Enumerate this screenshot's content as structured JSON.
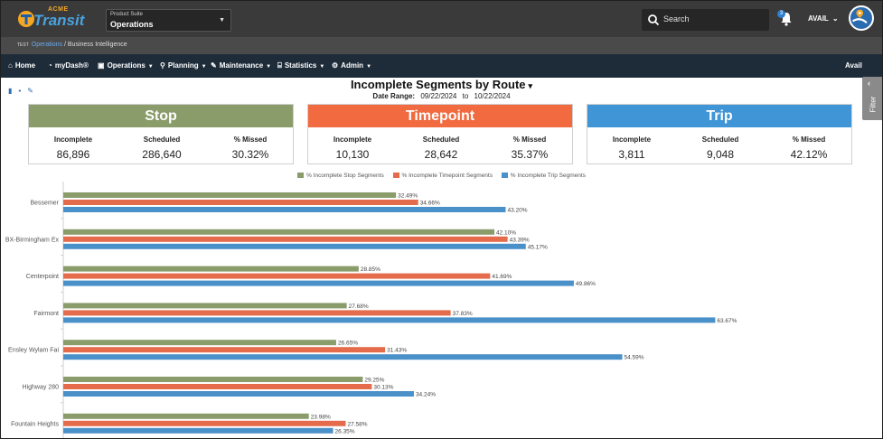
{
  "header": {
    "logo_acme": "ACME",
    "logo_transit": "Transit",
    "suite_label": "Product Suite",
    "suite_value": "Operations",
    "search_placeholder": "Search",
    "notification_count": "3",
    "user_label": "AVAIL"
  },
  "breadcrumb": {
    "env": "TEST",
    "link": "Operations",
    "separator": "/",
    "current": "Business Intelligence"
  },
  "nav": {
    "items": [
      {
        "label": "Home",
        "icon": "home-icon",
        "dropdown": false
      },
      {
        "label": "myDash®",
        "icon": "dashboard-icon",
        "dropdown": false
      },
      {
        "label": "Operations",
        "icon": "bus-icon",
        "dropdown": true
      },
      {
        "label": "Planning",
        "icon": "map-pin-icon",
        "dropdown": true
      },
      {
        "label": "Maintenance",
        "icon": "wrench-icon",
        "dropdown": true
      },
      {
        "label": "Statistics",
        "icon": "bank-icon",
        "dropdown": true
      },
      {
        "label": "Admin",
        "icon": "gears-icon",
        "dropdown": true
      }
    ],
    "right_label": "Avail"
  },
  "report": {
    "title": "Incomplete Segments by Route",
    "date_range_label": "Date Range:",
    "date_from": "09/22/2024",
    "date_to_word": "to",
    "date_to": "10/22/2024",
    "filter_label": "Filter"
  },
  "cards": [
    {
      "title": "Stop",
      "color": "#8a9c6a",
      "k1": "Incomplete",
      "v1": "86,896",
      "k2": "Scheduled",
      "v2": "286,640",
      "k3": "% Missed",
      "v3": "30.32%"
    },
    {
      "title": "Timepoint",
      "color": "#f26a3f",
      "k1": "Incomplete",
      "v1": "10,130",
      "k2": "Scheduled",
      "v2": "28,642",
      "k3": "% Missed",
      "v3": "35.37%"
    },
    {
      "title": "Trip",
      "color": "#3f95d6",
      "k1": "Incomplete",
      "v1": "3,811",
      "k2": "Scheduled",
      "v2": "9,048",
      "k3": "% Missed",
      "v3": "42.12%"
    }
  ],
  "chart_data": {
    "type": "bar",
    "orientation": "horizontal",
    "categories": [
      "Bessemer",
      "BX-Birmingham Ex",
      "Centerpoint",
      "Fairmont",
      "Ensley Wylam Fai",
      "Highway 280",
      "Fountain Heights"
    ],
    "series": [
      {
        "name": "% Incomplete Stop Segments",
        "color": "#8a9c6a",
        "values": [
          32.49,
          42.1,
          28.85,
          27.68,
          26.65,
          29.25,
          23.98
        ],
        "labels": [
          "32.49%",
          "42.10%",
          "28.85%",
          "27.68%",
          "26.65%",
          "29.25%",
          "23.98%"
        ]
      },
      {
        "name": "% Incomplete Timepoint Segments",
        "color": "#e46c4c",
        "values": [
          34.66,
          43.39,
          41.69,
          37.83,
          31.43,
          30.13,
          27.58
        ],
        "labels": [
          "34.66%",
          "43.39%",
          "41.69%",
          "37.83%",
          "31.43%",
          "30.13%",
          "27.58%"
        ]
      },
      {
        "name": "% Incomplete Trip Segments",
        "color": "#4a90c9",
        "values": [
          43.2,
          45.17,
          49.86,
          63.67,
          54.59,
          34.24,
          26.35
        ],
        "labels": [
          "43.20%",
          "45.17%",
          "49.86%",
          "63.67%",
          "54.59%",
          "34.24%",
          "26.35%"
        ]
      }
    ],
    "legend_position": "top-center",
    "grid": false
  }
}
